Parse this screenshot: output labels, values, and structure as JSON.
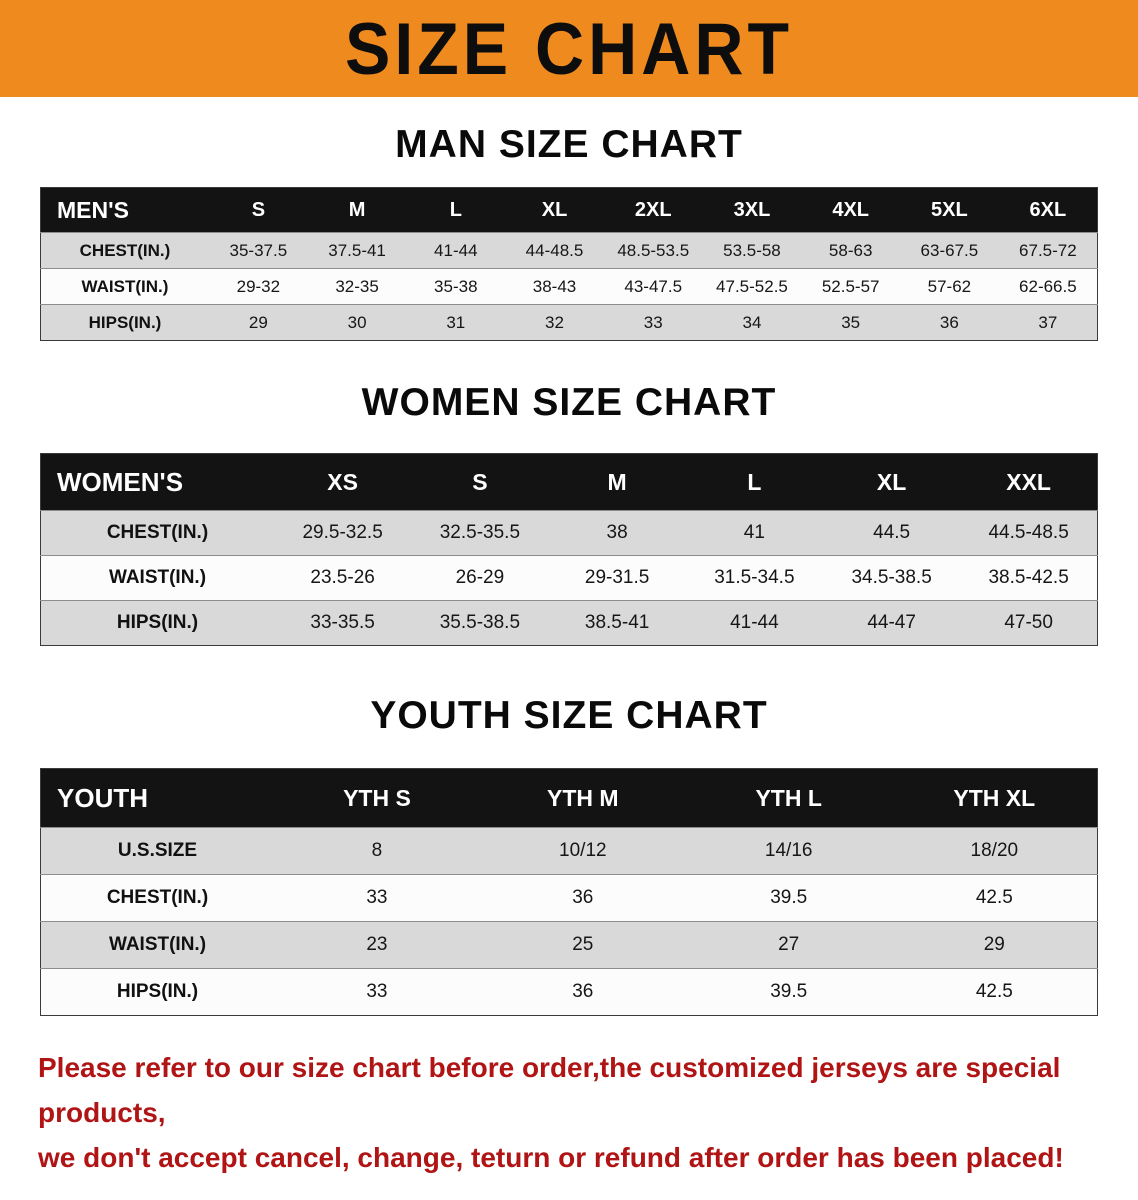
{
  "banner": {
    "title": "SIZE CHART",
    "bg_color": "#ee8a1e"
  },
  "sections": [
    {
      "id": "men",
      "heading": "MAN SIZE CHART",
      "table": {
        "header": [
          "MEN'S",
          "S",
          "M",
          "L",
          "XL",
          "2XL",
          "3XL",
          "4XL",
          "5XL",
          "6XL"
        ],
        "rows": [
          {
            "label": "CHEST(IN.)",
            "values": [
              "35-37.5",
              "37.5-41",
              "41-44",
              "44-48.5",
              "48.5-53.5",
              "53.5-58",
              "58-63",
              "63-67.5",
              "67.5-72"
            ]
          },
          {
            "label": "WAIST(IN.)",
            "values": [
              "29-32",
              "32-35",
              "35-38",
              "38-43",
              "43-47.5",
              "47.5-52.5",
              "52.5-57",
              "57-62",
              "62-66.5"
            ]
          },
          {
            "label": "HIPS(IN.)",
            "values": [
              "29",
              "30",
              "31",
              "32",
              "33",
              "34",
              "35",
              "36",
              "37"
            ]
          }
        ]
      }
    },
    {
      "id": "women",
      "heading": "WOMEN SIZE CHART",
      "table": {
        "header": [
          "WOMEN'S",
          "XS",
          "S",
          "M",
          "L",
          "XL",
          "XXL"
        ],
        "rows": [
          {
            "label": "CHEST(IN.)",
            "values": [
              "29.5-32.5",
              "32.5-35.5",
              "38",
              "41",
              "44.5",
              "44.5-48.5"
            ]
          },
          {
            "label": "WAIST(IN.)",
            "values": [
              "23.5-26",
              "26-29",
              "29-31.5",
              "31.5-34.5",
              "34.5-38.5",
              "38.5-42.5"
            ]
          },
          {
            "label": "HIPS(IN.)",
            "values": [
              "33-35.5",
              "35.5-38.5",
              "38.5-41",
              "41-44",
              "44-47",
              "47-50"
            ]
          }
        ]
      }
    },
    {
      "id": "youth",
      "heading": "YOUTH SIZE CHART",
      "table": {
        "header": [
          "YOUTH",
          "YTH S",
          "YTH M",
          "YTH L",
          "YTH XL"
        ],
        "rows": [
          {
            "label": "U.S.SIZE",
            "values": [
              "8",
              "10/12",
              "14/16",
              "18/20"
            ]
          },
          {
            "label": "CHEST(IN.)",
            "values": [
              "33",
              "36",
              "39.5",
              "42.5"
            ]
          },
          {
            "label": "WAIST(IN.)",
            "values": [
              "23",
              "25",
              "27",
              "29"
            ]
          },
          {
            "label": "HIPS(IN.)",
            "values": [
              "33",
              "36",
              "39.5",
              "42.5"
            ]
          }
        ]
      }
    }
  ],
  "disclaimer": {
    "color": "#b01414",
    "lines": [
      "Please refer to our size chart before order,the customized jerseys are special products,",
      "we don't accept cancel, change, teturn or refund after order has been placed!"
    ]
  }
}
